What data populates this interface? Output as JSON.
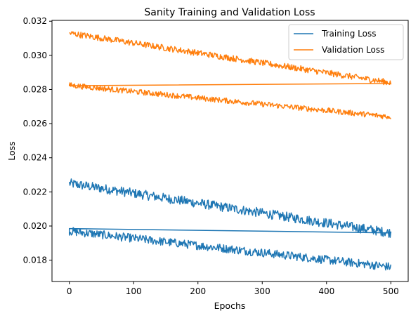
{
  "chart_data": {
    "type": "line",
    "title": "Sanity Training and Validation Loss",
    "xlabel": "Epochs",
    "ylabel": "Loss",
    "xlim": [
      -27,
      527
    ],
    "ylim": [
      0.01675,
      0.03205
    ],
    "x_ticks": [
      0,
      100,
      200,
      300,
      400,
      500
    ],
    "y_ticks": [
      0.018,
      0.02,
      0.022,
      0.024,
      0.026,
      0.028,
      0.03,
      0.032
    ],
    "y_tick_labels": [
      "0.018",
      "0.020",
      "0.022",
      "0.024",
      "0.026",
      "0.028",
      "0.030",
      "0.032"
    ],
    "x_tick_labels": [
      "0",
      "100",
      "200",
      "300",
      "400",
      "500"
    ],
    "grid": false,
    "legend_position": "top-right",
    "series": [
      {
        "name": "Training Loss",
        "color": "#1f77b4",
        "segments": [
          {
            "x_start": 0,
            "x_end": 500,
            "y_start": 0.0225,
            "y_end": 0.0196,
            "noise": 0.00028
          },
          {
            "x_start": 500,
            "x_end": 0,
            "y_start": 0.0196,
            "y_end": 0.01985,
            "noise": 0.0
          },
          {
            "x_start": 0,
            "x_end": 500,
            "y_start": 0.0197,
            "y_end": 0.0176,
            "noise": 0.00025
          }
        ]
      },
      {
        "name": "Validation Loss",
        "color": "#ff7f0e",
        "segments": [
          {
            "x_start": 0,
            "x_end": 500,
            "y_start": 0.0313,
            "y_end": 0.0284,
            "noise": 0.00018
          },
          {
            "x_start": 500,
            "x_end": 0,
            "y_start": 0.02835,
            "y_end": 0.02822,
            "noise": 0.0
          },
          {
            "x_start": 0,
            "x_end": 500,
            "y_start": 0.02825,
            "y_end": 0.0264,
            "noise": 0.00016
          }
        ]
      }
    ]
  }
}
